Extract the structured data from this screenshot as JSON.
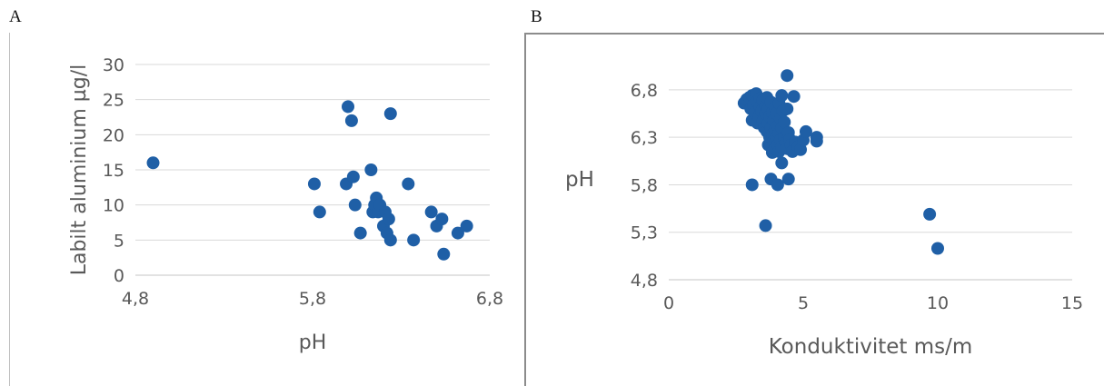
{
  "panels": {
    "a_label": "A",
    "b_label": "B"
  },
  "colors": {
    "marker": "#1f5fa6",
    "grid": "#d9d9d9",
    "text": "#595959"
  },
  "chart_data": [
    {
      "id": "A",
      "type": "scatter",
      "title": "",
      "xlabel": "pH",
      "ylabel": "Labilt aluminium µg/l",
      "xlim": [
        4.8,
        6.8
      ],
      "ylim": [
        0,
        30
      ],
      "xticks": [
        4.8,
        5.8,
        6.8
      ],
      "xtick_labels": [
        "4,8",
        "5,8",
        "6,8"
      ],
      "yticks": [
        0,
        5,
        10,
        15,
        20,
        25,
        30
      ],
      "ytick_labels": [
        "0",
        "5",
        "10",
        "15",
        "20",
        "25",
        "30"
      ],
      "grid": "horizontal",
      "points": [
        {
          "x": 4.9,
          "y": 16
        },
        {
          "x": 5.81,
          "y": 13
        },
        {
          "x": 5.84,
          "y": 9
        },
        {
          "x": 5.99,
          "y": 13
        },
        {
          "x": 6.0,
          "y": 24
        },
        {
          "x": 6.02,
          "y": 22
        },
        {
          "x": 6.03,
          "y": 14
        },
        {
          "x": 6.04,
          "y": 10
        },
        {
          "x": 6.07,
          "y": 6
        },
        {
          "x": 6.13,
          "y": 15
        },
        {
          "x": 6.14,
          "y": 9
        },
        {
          "x": 6.15,
          "y": 10
        },
        {
          "x": 6.16,
          "y": 11
        },
        {
          "x": 6.17,
          "y": 9
        },
        {
          "x": 6.18,
          "y": 10
        },
        {
          "x": 6.2,
          "y": 7
        },
        {
          "x": 6.21,
          "y": 9
        },
        {
          "x": 6.22,
          "y": 6
        },
        {
          "x": 6.23,
          "y": 8
        },
        {
          "x": 6.24,
          "y": 5
        },
        {
          "x": 6.24,
          "y": 23
        },
        {
          "x": 6.34,
          "y": 13
        },
        {
          "x": 6.37,
          "y": 5
        },
        {
          "x": 6.47,
          "y": 9
        },
        {
          "x": 6.5,
          "y": 7
        },
        {
          "x": 6.53,
          "y": 8
        },
        {
          "x": 6.54,
          "y": 3
        },
        {
          "x": 6.62,
          "y": 6
        },
        {
          "x": 6.67,
          "y": 7
        }
      ]
    },
    {
      "id": "B",
      "type": "scatter",
      "title": "",
      "xlabel": "Konduktivitet ms/m",
      "ylabel": "pH",
      "xlim": [
        0,
        15
      ],
      "ylim": [
        4.8,
        7.0
      ],
      "xticks": [
        0,
        5,
        10,
        15
      ],
      "xtick_labels": [
        "0",
        "5",
        "10",
        "15"
      ],
      "yticks": [
        4.8,
        5.3,
        5.8,
        6.3,
        6.8
      ],
      "ytick_labels": [
        "4,8",
        "5,3",
        "5,8",
        "6,3",
        "6,8"
      ],
      "grid": "horizontal",
      "points": [
        {
          "x": 2.8,
          "y": 6.66
        },
        {
          "x": 2.9,
          "y": 6.7
        },
        {
          "x": 3.0,
          "y": 6.72
        },
        {
          "x": 3.05,
          "y": 6.6
        },
        {
          "x": 3.1,
          "y": 6.74
        },
        {
          "x": 3.1,
          "y": 6.48
        },
        {
          "x": 3.15,
          "y": 6.64
        },
        {
          "x": 3.2,
          "y": 6.56
        },
        {
          "x": 3.25,
          "y": 6.76
        },
        {
          "x": 3.3,
          "y": 6.68
        },
        {
          "x": 3.3,
          "y": 6.45
        },
        {
          "x": 3.35,
          "y": 6.52
        },
        {
          "x": 3.4,
          "y": 6.71
        },
        {
          "x": 3.4,
          "y": 6.62
        },
        {
          "x": 3.45,
          "y": 6.58
        },
        {
          "x": 3.5,
          "y": 6.47
        },
        {
          "x": 3.5,
          "y": 6.69
        },
        {
          "x": 3.55,
          "y": 6.4
        },
        {
          "x": 3.6,
          "y": 6.63
        },
        {
          "x": 3.6,
          "y": 6.55
        },
        {
          "x": 3.65,
          "y": 6.72
        },
        {
          "x": 3.65,
          "y": 6.36
        },
        {
          "x": 3.7,
          "y": 6.6
        },
        {
          "x": 3.7,
          "y": 6.45
        },
        {
          "x": 3.7,
          "y": 6.22
        },
        {
          "x": 3.75,
          "y": 6.52
        },
        {
          "x": 3.75,
          "y": 6.3
        },
        {
          "x": 3.8,
          "y": 6.67
        },
        {
          "x": 3.8,
          "y": 6.4
        },
        {
          "x": 3.8,
          "y": 6.2
        },
        {
          "x": 3.85,
          "y": 6.56
        },
        {
          "x": 3.85,
          "y": 6.33
        },
        {
          "x": 3.85,
          "y": 6.14
        },
        {
          "x": 3.9,
          "y": 6.48
        },
        {
          "x": 3.9,
          "y": 6.26
        },
        {
          "x": 3.95,
          "y": 6.62
        },
        {
          "x": 3.95,
          "y": 6.38
        },
        {
          "x": 3.95,
          "y": 6.18
        },
        {
          "x": 4.0,
          "y": 6.55
        },
        {
          "x": 4.0,
          "y": 6.3
        },
        {
          "x": 4.05,
          "y": 6.42
        },
        {
          "x": 4.05,
          "y": 6.22
        },
        {
          "x": 4.1,
          "y": 6.66
        },
        {
          "x": 4.1,
          "y": 6.34
        },
        {
          "x": 4.1,
          "y": 6.15
        },
        {
          "x": 4.15,
          "y": 6.5
        },
        {
          "x": 4.15,
          "y": 6.27
        },
        {
          "x": 4.2,
          "y": 6.74
        },
        {
          "x": 4.2,
          "y": 6.4
        },
        {
          "x": 4.2,
          "y": 6.2
        },
        {
          "x": 4.25,
          "y": 6.58
        },
        {
          "x": 4.3,
          "y": 6.3
        },
        {
          "x": 4.3,
          "y": 6.46
        },
        {
          "x": 4.35,
          "y": 6.24
        },
        {
          "x": 4.4,
          "y": 6.6
        },
        {
          "x": 4.4,
          "y": 6.18
        },
        {
          "x": 4.45,
          "y": 6.35
        },
        {
          "x": 4.5,
          "y": 6.28
        },
        {
          "x": 4.55,
          "y": 6.22
        },
        {
          "x": 4.6,
          "y": 6.15
        },
        {
          "x": 4.7,
          "y": 6.25
        },
        {
          "x": 4.8,
          "y": 6.2
        },
        {
          "x": 4.9,
          "y": 6.17
        },
        {
          "x": 5.0,
          "y": 6.27
        },
        {
          "x": 5.1,
          "y": 6.36
        },
        {
          "x": 5.5,
          "y": 6.3
        },
        {
          "x": 5.5,
          "y": 6.26
        },
        {
          "x": 4.4,
          "y": 6.95
        },
        {
          "x": 4.65,
          "y": 6.73
        },
        {
          "x": 4.2,
          "y": 6.03
        },
        {
          "x": 3.1,
          "y": 5.8
        },
        {
          "x": 3.8,
          "y": 5.86
        },
        {
          "x": 4.05,
          "y": 5.8
        },
        {
          "x": 4.45,
          "y": 5.86
        },
        {
          "x": 3.6,
          "y": 5.37
        },
        {
          "x": 9.7,
          "y": 5.49
        },
        {
          "x": 10.0,
          "y": 5.13
        }
      ]
    }
  ]
}
